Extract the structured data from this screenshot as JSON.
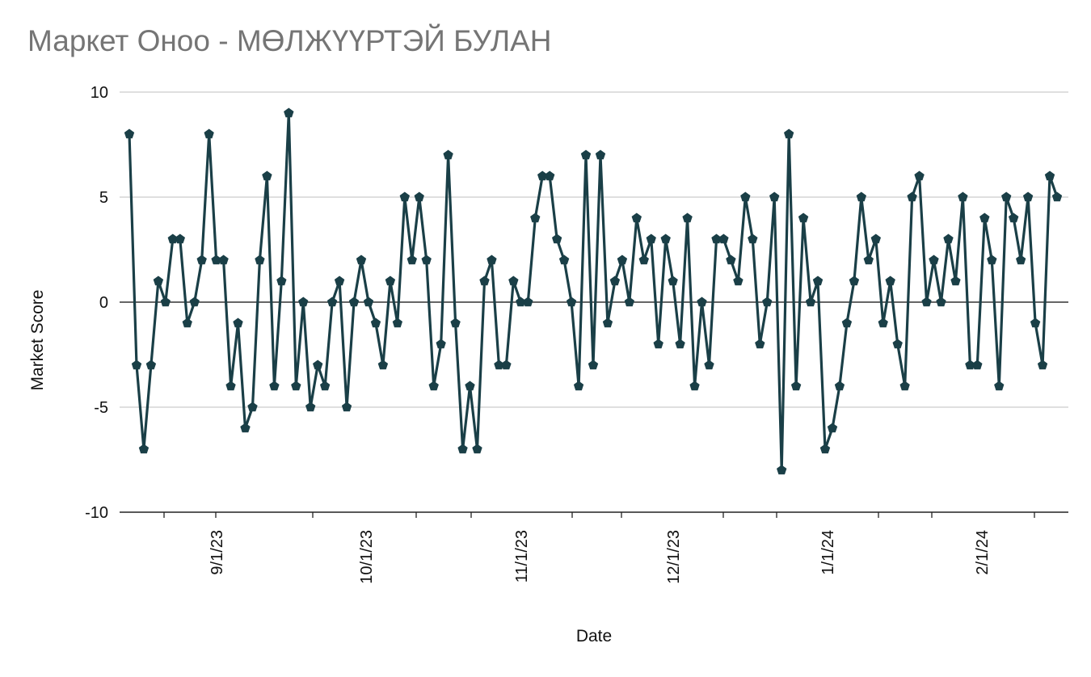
{
  "chart_data": {
    "type": "line",
    "title": "Маркет Оноо - МӨЛЖҮҮРТЭЙ БУЛАН",
    "xlabel": "Date",
    "ylabel": "Market Score",
    "ylim": [
      -10,
      10
    ],
    "yticks": [
      10,
      5,
      0,
      -5,
      -10
    ],
    "ytick_labels": [
      "10",
      "5",
      "0",
      "-5",
      "-10"
    ],
    "xticks": [
      "9/1/23",
      "10/1/23",
      "11/1/23",
      "12/1/23",
      "1/1/24",
      "2/1/24"
    ],
    "grid": true,
    "line_color": "#1a3f47",
    "marker": "pentagon",
    "series": [
      {
        "name": "Market Score",
        "values": [
          8,
          -3,
          -7,
          -3,
          1,
          0,
          3,
          3,
          -1,
          0,
          2,
          8,
          2,
          2,
          -4,
          -1,
          -6,
          -5,
          2,
          6,
          -4,
          1,
          9,
          -4,
          0,
          -5,
          -3,
          -4,
          0,
          1,
          -5,
          0,
          2,
          0,
          -1,
          -3,
          1,
          -1,
          5,
          2,
          5,
          2,
          -4,
          -2,
          7,
          -1,
          -7,
          -4,
          -7,
          1,
          2,
          -3,
          -3,
          1,
          0,
          0,
          4,
          6,
          6,
          3,
          2,
          0,
          -4,
          7,
          -3,
          7,
          -1,
          1,
          2,
          0,
          4,
          2,
          3,
          -2,
          3,
          1,
          -2,
          4,
          -4,
          0,
          -3,
          3,
          3,
          2,
          1,
          5,
          3,
          -2,
          0,
          5,
          -8,
          8,
          -4,
          4,
          0,
          1,
          -7,
          -6,
          -4,
          -1,
          1,
          5,
          2,
          3,
          -1,
          1,
          -2,
          -4,
          5,
          6,
          0,
          2,
          0,
          3,
          1,
          5,
          -3,
          -3,
          4,
          2,
          -4,
          5,
          4,
          2,
          5,
          -1,
          -3,
          6,
          5
        ]
      }
    ]
  }
}
